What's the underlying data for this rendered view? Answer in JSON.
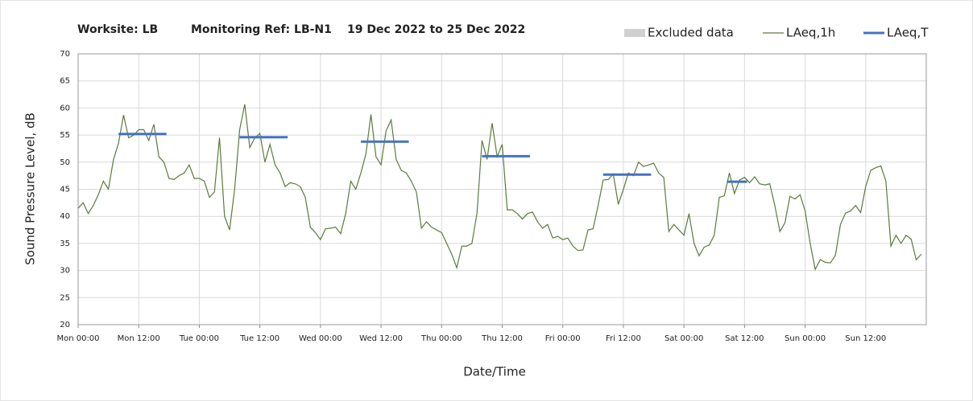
{
  "chart_data": {
    "type": "line",
    "title": [
      "Worksite: LB",
      "Monitoring Ref: LB-N1",
      "19 Dec 2022 to 25 Dec 2022"
    ],
    "x_label": "Date/Time",
    "y_label": "Sound Pressure Level, dB",
    "xlim": [
      0,
      168
    ],
    "xticks": [
      {
        "value": 0,
        "label": "Mon 00:00"
      },
      {
        "value": 12,
        "label": "Mon 12:00"
      },
      {
        "value": 24,
        "label": "Tue 00:00"
      },
      {
        "value": 36,
        "label": "Tue 12:00"
      },
      {
        "value": 48,
        "label": "Wed 00:00"
      },
      {
        "value": 60,
        "label": "Wed 12:00"
      },
      {
        "value": 72,
        "label": "Thu 00:00"
      },
      {
        "value": 84,
        "label": "Thu 12:00"
      },
      {
        "value": 96,
        "label": "Fri 00:00"
      },
      {
        "value": 108,
        "label": "Fri 12:00"
      },
      {
        "value": 120,
        "label": "Sat 00:00"
      },
      {
        "value": 132,
        "label": "Sat 12:00"
      },
      {
        "value": 144,
        "label": "Sun 00:00"
      },
      {
        "value": 156,
        "label": "Sun 12:00"
      }
    ],
    "ylim": [
      20,
      70
    ],
    "yticks": [
      20,
      25,
      30,
      35,
      40,
      45,
      50,
      55,
      60,
      65,
      70
    ],
    "grid": true,
    "legend_position": "top-right",
    "legend_extra": {
      "name": "Excluded data",
      "color": "#d0d0d0"
    },
    "x": [
      0,
      1,
      2,
      3,
      4,
      5,
      6,
      7,
      8,
      9,
      10,
      11,
      12,
      13,
      14,
      15,
      16,
      17,
      18,
      19,
      20,
      21,
      22,
      23,
      24,
      25,
      26,
      27,
      28,
      29,
      30,
      31,
      32,
      33,
      34,
      35,
      36,
      37,
      38,
      39,
      40,
      41,
      42,
      43,
      44,
      45,
      46,
      47,
      48,
      49,
      50,
      51,
      52,
      53,
      54,
      55,
      56,
      57,
      58,
      59,
      60,
      61,
      62,
      63,
      64,
      65,
      66,
      67,
      68,
      69,
      70,
      71,
      72,
      73,
      74,
      75,
      76,
      77,
      78,
      79,
      80,
      81,
      82,
      83,
      84,
      85,
      86,
      87,
      88,
      89,
      90,
      91,
      92,
      93,
      94,
      95,
      96,
      97,
      98,
      99,
      100,
      101,
      102,
      103,
      104,
      105,
      106,
      107,
      108,
      109,
      110,
      111,
      112,
      113,
      114,
      115,
      116,
      117,
      118,
      119,
      120,
      121,
      122,
      123,
      124,
      125,
      126,
      127,
      128,
      129,
      130,
      131,
      132,
      133,
      134,
      135,
      136,
      137,
      138,
      139,
      140,
      141,
      142,
      143,
      144,
      145,
      146,
      147,
      148,
      149,
      150,
      151,
      152,
      153,
      154,
      155,
      156,
      157,
      158,
      159,
      160,
      161,
      162,
      163,
      164,
      165,
      166,
      167
    ],
    "series": [
      {
        "name": "LAeq,1h",
        "color": "#5b7b3c",
        "values": [
          41.5,
          42.5,
          40.5,
          42,
          44,
          46.5,
          45,
          50.5,
          53.5,
          58.7,
          54.5,
          55,
          56,
          56,
          54,
          57,
          51,
          50,
          47,
          46.8,
          47.5,
          48,
          49.5,
          47,
          47,
          46.5,
          43.5,
          44.5,
          54.5,
          40,
          37.5,
          45,
          56,
          60.7,
          52.7,
          54.5,
          55.3,
          50,
          53.3,
          49.5,
          48,
          45.5,
          46.2,
          46,
          45.5,
          43.5,
          38,
          37,
          35.7,
          37.7,
          37.8,
          38,
          36.8,
          40.5,
          46.5,
          45,
          48,
          51.5,
          58.8,
          51,
          49.5,
          55.8,
          57.8,
          50.5,
          48.5,
          48,
          46.5,
          44.5,
          37.8,
          39,
          38,
          37.5,
          37,
          35,
          33,
          30.5,
          34.5,
          34.5,
          35,
          40.5,
          54,
          50.5,
          57.2,
          51,
          53.3,
          41.2,
          41.2,
          40.5,
          39.5,
          40.5,
          40.8,
          39,
          37.8,
          38.5,
          36,
          36.3,
          35.7,
          36,
          34.5,
          33.7,
          33.8,
          37.5,
          37.7,
          42,
          46.7,
          46.8,
          47.8,
          42.2,
          45,
          48,
          47.5,
          50,
          49.2,
          49.5,
          49.8,
          48,
          47.2,
          37.2,
          38.5,
          37.5,
          36.5,
          40.5,
          35,
          32.7,
          34.3,
          34.7,
          36.5,
          43.5,
          43.8,
          48,
          44.2,
          46.7,
          47.2,
          46.2,
          47.3,
          46,
          45.8,
          46,
          42,
          37.2,
          38.8,
          43.7,
          43.2,
          44,
          41,
          35,
          30.2,
          32,
          31.5,
          31.4,
          32.8,
          38.5,
          40.6,
          41,
          42,
          40.7,
          45.5,
          48.5,
          49,
          49.3,
          46.5,
          34.5,
          36.5,
          35,
          36.5,
          35.8,
          32,
          33
        ]
      },
      {
        "name": "LAeq,T",
        "color": "#4472c4",
        "segments": [
          {
            "x": [
              8,
              17.5
            ],
            "value": 55.2
          },
          {
            "x": [
              32,
              41.5
            ],
            "value": 54.6
          },
          {
            "x": [
              56,
              65.5
            ],
            "value": 53.8
          },
          {
            "x": [
              80,
              89.5
            ],
            "value": 51.1
          },
          {
            "x": [
              104,
              113.5
            ],
            "value": 47.7
          },
          {
            "x": [
              128.5,
              132.5
            ],
            "value": 46.4
          }
        ]
      }
    ]
  }
}
